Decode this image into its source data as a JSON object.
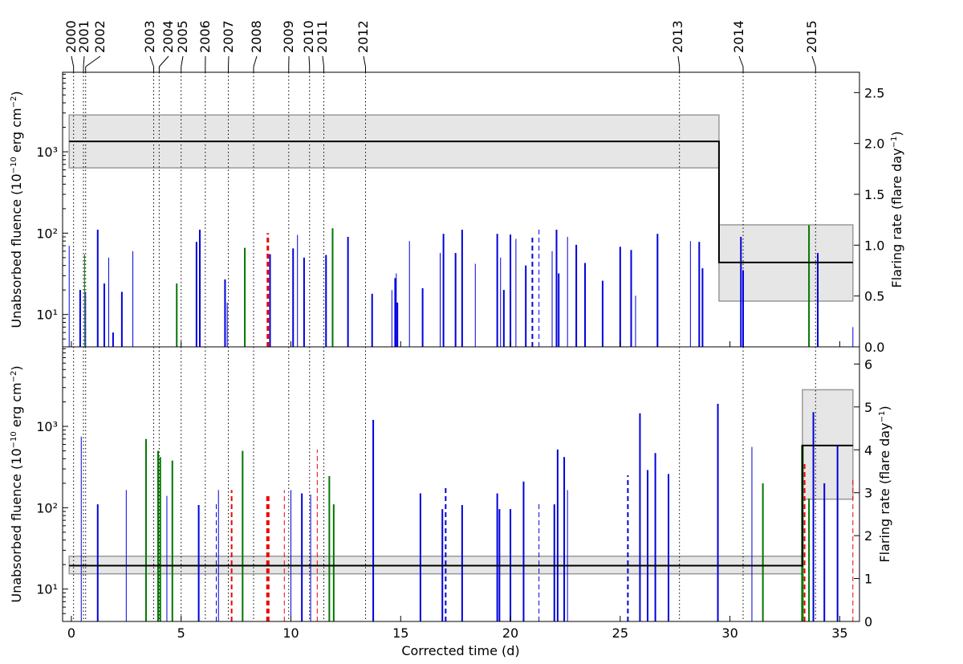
{
  "figure": {
    "xlabel": "Corrected time (d)",
    "year_labels": [
      "2000",
      "2001",
      "2002",
      "2003",
      "2004",
      "2005",
      "2006",
      "2007",
      "2008",
      "2009",
      "2010",
      "2011",
      "2012",
      "2013",
      "2014",
      "2015"
    ],
    "year_times": [
      0.1,
      0.55,
      0.65,
      3.75,
      4.0,
      5.0,
      6.1,
      7.15,
      8.3,
      9.9,
      10.85,
      11.5,
      13.4,
      27.7,
      30.6,
      33.9
    ],
    "xlim": [
      -0.4,
      35.9
    ],
    "xticks": [
      0,
      5,
      10,
      15,
      20,
      25,
      30,
      35
    ],
    "xtick_labels": [
      "0",
      "5",
      "10",
      "15",
      "20",
      "25",
      "30",
      "35"
    ],
    "colors": {
      "blue": "#0000dd",
      "green": "#007700",
      "red": "#ee0000",
      "band_fill": "#e6e6e6",
      "band_edge": "#999999"
    }
  },
  "chart_data": [
    {
      "type": "bar",
      "panel": "top",
      "ylabel": "Unabsorbed fluence (10$^{-10}$ erg cm$^{-2}$)",
      "y2label": "Flaring rate (flare day$^{-1}$)",
      "ylog": true,
      "ylim": [
        4,
        9500
      ],
      "yticks": [
        10,
        100,
        1000
      ],
      "ytick_labels": [
        "10¹",
        "10²",
        "10³"
      ],
      "y2lim": [
        0,
        2.7
      ],
      "y2ticks": [
        0.0,
        0.5,
        1.0,
        1.5,
        2.0,
        2.5
      ],
      "y2tick_labels": [
        "0.0",
        "0.5",
        "1.0",
        "1.5",
        "2.0",
        "2.5"
      ],
      "flares": [
        {
          "t": -0.1,
          "f": 70,
          "c": "blue",
          "w": 1
        },
        {
          "t": 0.4,
          "f": 20,
          "c": "blue",
          "w": 2
        },
        {
          "t": 0.6,
          "f": 55,
          "c": "green",
          "w": 1
        },
        {
          "t": 0.65,
          "f": 19,
          "c": "blue",
          "w": 1
        },
        {
          "t": 1.2,
          "f": 110,
          "c": "blue",
          "w": 2
        },
        {
          "t": 1.5,
          "f": 24,
          "c": "blue",
          "w": 2
        },
        {
          "t": 1.7,
          "f": 50,
          "c": "blue",
          "w": 1
        },
        {
          "t": 1.9,
          "f": 6,
          "c": "blue",
          "w": 2
        },
        {
          "t": 2.3,
          "f": 19,
          "c": "blue",
          "w": 2
        },
        {
          "t": 2.8,
          "f": 60,
          "c": "blue",
          "w": 1
        },
        {
          "t": 4.8,
          "f": 24,
          "c": "green",
          "w": 2
        },
        {
          "t": 5.7,
          "f": 78,
          "c": "blue",
          "w": 2
        },
        {
          "t": 5.85,
          "f": 110,
          "c": "blue",
          "w": 2
        },
        {
          "t": 7.0,
          "f": 27,
          "c": "blue",
          "w": 2
        },
        {
          "t": 7.1,
          "f": 14,
          "c": "blue",
          "w": 1
        },
        {
          "t": 7.9,
          "f": 66,
          "c": "green",
          "w": 2
        },
        {
          "t": 8.95,
          "f": 100,
          "c": "red",
          "w": 3,
          "dash": true
        },
        {
          "t": 9.05,
          "f": 55,
          "c": "blue",
          "w": 2
        },
        {
          "t": 10.1,
          "f": 65,
          "c": "blue",
          "w": 2
        },
        {
          "t": 10.3,
          "f": 95,
          "c": "blue",
          "w": 1
        },
        {
          "t": 10.6,
          "f": 50,
          "c": "blue",
          "w": 2
        },
        {
          "t": 11.6,
          "f": 54,
          "c": "blue",
          "w": 2
        },
        {
          "t": 11.9,
          "f": 115,
          "c": "green",
          "w": 2
        },
        {
          "t": 12.6,
          "f": 90,
          "c": "blue",
          "w": 2
        },
        {
          "t": 13.7,
          "f": 18,
          "c": "blue",
          "w": 2
        },
        {
          "t": 14.6,
          "f": 20,
          "c": "blue",
          "w": 1
        },
        {
          "t": 14.75,
          "f": 28,
          "c": "blue",
          "w": 2
        },
        {
          "t": 14.8,
          "f": 32,
          "c": "blue",
          "w": 1
        },
        {
          "t": 14.85,
          "f": 14,
          "c": "blue",
          "w": 2
        },
        {
          "t": 15.4,
          "f": 80,
          "c": "blue",
          "w": 1
        },
        {
          "t": 16.0,
          "f": 21,
          "c": "blue",
          "w": 2
        },
        {
          "t": 16.8,
          "f": 57,
          "c": "blue",
          "w": 1
        },
        {
          "t": 16.95,
          "f": 98,
          "c": "blue",
          "w": 2
        },
        {
          "t": 17.5,
          "f": 57,
          "c": "blue",
          "w": 2
        },
        {
          "t": 17.8,
          "f": 110,
          "c": "blue",
          "w": 2
        },
        {
          "t": 18.4,
          "f": 42,
          "c": "blue",
          "w": 1
        },
        {
          "t": 19.4,
          "f": 98,
          "c": "blue",
          "w": 2
        },
        {
          "t": 19.55,
          "f": 50,
          "c": "blue",
          "w": 1
        },
        {
          "t": 19.7,
          "f": 20,
          "c": "blue",
          "w": 2
        },
        {
          "t": 20.0,
          "f": 96,
          "c": "blue",
          "w": 2
        },
        {
          "t": 20.25,
          "f": 85,
          "c": "blue",
          "w": 1
        },
        {
          "t": 20.7,
          "f": 40,
          "c": "blue",
          "w": 2
        },
        {
          "t": 21.0,
          "f": 95,
          "c": "blue",
          "w": 2,
          "dash": true
        },
        {
          "t": 21.3,
          "f": 115,
          "c": "blue",
          "w": 1,
          "dash": true
        },
        {
          "t": 21.9,
          "f": 60,
          "c": "blue",
          "w": 1
        },
        {
          "t": 22.1,
          "f": 110,
          "c": "blue",
          "w": 2
        },
        {
          "t": 22.2,
          "f": 32,
          "c": "blue",
          "w": 2
        },
        {
          "t": 22.6,
          "f": 90,
          "c": "blue",
          "w": 1
        },
        {
          "t": 23.0,
          "f": 72,
          "c": "blue",
          "w": 2
        },
        {
          "t": 23.4,
          "f": 43,
          "c": "blue",
          "w": 2
        },
        {
          "t": 24.2,
          "f": 26,
          "c": "blue",
          "w": 2
        },
        {
          "t": 25.0,
          "f": 68,
          "c": "blue",
          "w": 2
        },
        {
          "t": 25.5,
          "f": 62,
          "c": "blue",
          "w": 2
        },
        {
          "t": 25.7,
          "f": 17,
          "c": "blue",
          "w": 1
        },
        {
          "t": 26.7,
          "f": 98,
          "c": "blue",
          "w": 2
        },
        {
          "t": 28.2,
          "f": 80,
          "c": "blue",
          "w": 1
        },
        {
          "t": 28.6,
          "f": 78,
          "c": "blue",
          "w": 2
        },
        {
          "t": 28.75,
          "f": 37,
          "c": "blue",
          "w": 2
        },
        {
          "t": 30.5,
          "f": 90,
          "c": "blue",
          "w": 2
        },
        {
          "t": 30.6,
          "f": 35,
          "c": "blue",
          "w": 2
        },
        {
          "t": 33.6,
          "f": 125,
          "c": "green",
          "w": 2
        },
        {
          "t": 34.0,
          "f": 57,
          "c": "blue",
          "w": 2
        },
        {
          "t": 35.6,
          "f": 7,
          "c": "blue",
          "w": 1
        }
      ],
      "rates": [
        {
          "t0": -0.1,
          "t1": 29.5,
          "rate": 2.02,
          "lo": 1.76,
          "hi": 2.28
        },
        {
          "t0": 29.5,
          "t1": 35.6,
          "rate": 0.83,
          "lo": 0.45,
          "hi": 1.2
        }
      ]
    },
    {
      "type": "bar",
      "panel": "bottom",
      "ylabel": "Unabsorbed fluence (10$^{-10}$ erg cm$^{-2}$)",
      "y2label": "Flaring rate (flare day$^{-1}$)",
      "ylog": true,
      "ylim": [
        4,
        9500
      ],
      "yticks": [
        10,
        100,
        1000
      ],
      "ytick_labels": [
        "10¹",
        "10²",
        "10³"
      ],
      "y2lim": [
        0,
        6.4
      ],
      "y2ticks": [
        0,
        1,
        2,
        3,
        4,
        5,
        6
      ],
      "y2tick_labels": [
        "0",
        "1",
        "2",
        "3",
        "4",
        "5",
        "6"
      ],
      "flares": [
        {
          "t": 0.45,
          "f": 750,
          "c": "blue",
          "w": 1
        },
        {
          "t": 1.2,
          "f": 110,
          "c": "blue",
          "w": 2
        },
        {
          "t": 2.5,
          "f": 165,
          "c": "blue",
          "w": 1
        },
        {
          "t": 3.4,
          "f": 700,
          "c": "green",
          "w": 2
        },
        {
          "t": 3.95,
          "f": 500,
          "c": "green",
          "w": 2
        },
        {
          "t": 4.05,
          "f": 420,
          "c": "green",
          "w": 2
        },
        {
          "t": 4.35,
          "f": 140,
          "c": "blue",
          "w": 1
        },
        {
          "t": 4.6,
          "f": 380,
          "c": "green",
          "w": 2
        },
        {
          "t": 5.8,
          "f": 108,
          "c": "blue",
          "w": 2
        },
        {
          "t": 6.6,
          "f": 118,
          "c": "blue",
          "w": 1,
          "dash": true
        },
        {
          "t": 6.7,
          "f": 165,
          "c": "blue",
          "w": 1
        },
        {
          "t": 7.3,
          "f": 165,
          "c": "red",
          "w": 2,
          "dash": true
        },
        {
          "t": 7.8,
          "f": 500,
          "c": "green",
          "w": 2
        },
        {
          "t": 8.95,
          "f": 145,
          "c": "red",
          "w": 4,
          "dash": true
        },
        {
          "t": 9.7,
          "f": 165,
          "c": "red",
          "w": 1,
          "dash": true
        },
        {
          "t": 10.0,
          "f": 165,
          "c": "blue",
          "w": 1
        },
        {
          "t": 10.5,
          "f": 150,
          "c": "blue",
          "w": 2
        },
        {
          "t": 10.9,
          "f": 145,
          "c": "blue",
          "w": 1
        },
        {
          "t": 11.2,
          "f": 520,
          "c": "red",
          "w": 1,
          "dash": true
        },
        {
          "t": 11.75,
          "f": 245,
          "c": "green",
          "w": 2
        },
        {
          "t": 11.95,
          "f": 110,
          "c": "green",
          "w": 2
        },
        {
          "t": 13.75,
          "f": 1200,
          "c": "blue",
          "w": 2
        },
        {
          "t": 15.9,
          "f": 150,
          "c": "blue",
          "w": 2
        },
        {
          "t": 16.9,
          "f": 96,
          "c": "blue",
          "w": 2
        },
        {
          "t": 17.05,
          "f": 180,
          "c": "blue",
          "w": 2,
          "dash": true
        },
        {
          "t": 17.8,
          "f": 108,
          "c": "blue",
          "w": 2
        },
        {
          "t": 19.4,
          "f": 150,
          "c": "blue",
          "w": 2
        },
        {
          "t": 19.5,
          "f": 96,
          "c": "blue",
          "w": 2
        },
        {
          "t": 20.0,
          "f": 96,
          "c": "blue",
          "w": 2
        },
        {
          "t": 20.6,
          "f": 210,
          "c": "blue",
          "w": 2
        },
        {
          "t": 21.3,
          "f": 120,
          "c": "blue",
          "w": 1,
          "dash": true
        },
        {
          "t": 22.0,
          "f": 110,
          "c": "blue",
          "w": 2
        },
        {
          "t": 22.15,
          "f": 520,
          "c": "blue",
          "w": 2
        },
        {
          "t": 22.45,
          "f": 420,
          "c": "blue",
          "w": 2
        },
        {
          "t": 22.6,
          "f": 165,
          "c": "blue",
          "w": 1
        },
        {
          "t": 25.35,
          "f": 250,
          "c": "blue",
          "w": 2,
          "dash": true
        },
        {
          "t": 25.9,
          "f": 1450,
          "c": "blue",
          "w": 2
        },
        {
          "t": 26.25,
          "f": 290,
          "c": "blue",
          "w": 2
        },
        {
          "t": 26.6,
          "f": 470,
          "c": "blue",
          "w": 2
        },
        {
          "t": 27.2,
          "f": 260,
          "c": "blue",
          "w": 2
        },
        {
          "t": 29.45,
          "f": 1900,
          "c": "blue",
          "w": 2
        },
        {
          "t": 31.0,
          "f": 560,
          "c": "blue",
          "w": 1
        },
        {
          "t": 31.5,
          "f": 200,
          "c": "green",
          "w": 2
        },
        {
          "t": 33.3,
          "f": 590,
          "c": "green",
          "w": 3
        },
        {
          "t": 33.4,
          "f": 350,
          "c": "red",
          "w": 2,
          "dash": true
        },
        {
          "t": 33.6,
          "f": 130,
          "c": "green",
          "w": 2
        },
        {
          "t": 33.8,
          "f": 1500,
          "c": "blue",
          "w": 2
        },
        {
          "t": 34.3,
          "f": 200,
          "c": "blue",
          "w": 2
        },
        {
          "t": 34.9,
          "f": 570,
          "c": "blue",
          "w": 2
        },
        {
          "t": 35.6,
          "f": 230,
          "c": "red",
          "w": 1,
          "dash": true
        }
      ],
      "rates": [
        {
          "t0": -0.1,
          "t1": 33.3,
          "rate": 1.3,
          "lo": 1.11,
          "hi": 1.52
        },
        {
          "t0": 33.3,
          "t1": 35.6,
          "rate": 4.1,
          "lo": 2.85,
          "hi": 5.4
        }
      ]
    }
  ]
}
